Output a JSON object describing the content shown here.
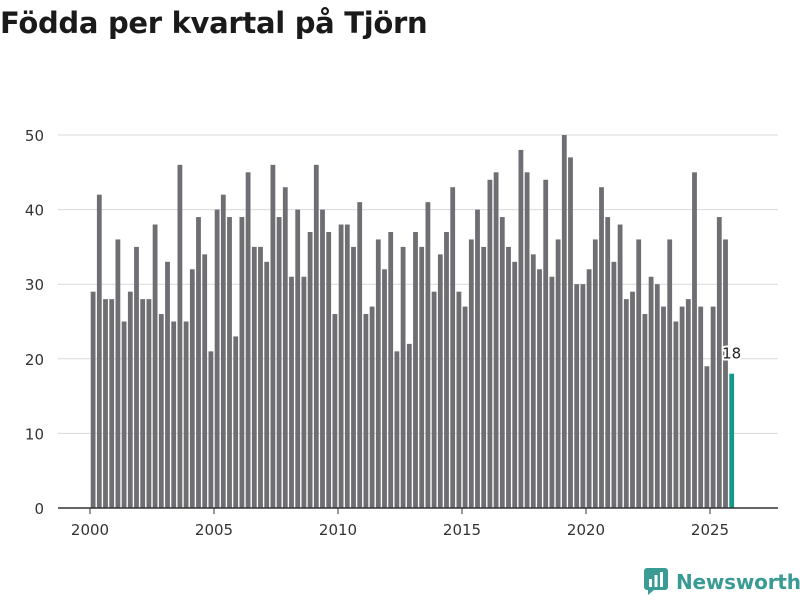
{
  "chart_data": {
    "type": "bar",
    "title": "Födda per kvartal på Tjörn",
    "xlabel": "",
    "ylabel": "",
    "ylim": [
      0,
      50
    ],
    "yticks": [
      0,
      10,
      20,
      30,
      40,
      50
    ],
    "xticks": [
      2000,
      2005,
      2010,
      2015,
      2020,
      2025
    ],
    "start_year": 2000,
    "start_quarter": 1,
    "values": [
      29,
      42,
      28,
      28,
      36,
      25,
      29,
      35,
      28,
      28,
      38,
      26,
      33,
      25,
      46,
      25,
      32,
      39,
      34,
      21,
      40,
      42,
      39,
      23,
      39,
      45,
      35,
      35,
      33,
      46,
      39,
      43,
      31,
      40,
      31,
      37,
      46,
      40,
      37,
      26,
      38,
      38,
      35,
      41,
      26,
      27,
      36,
      32,
      37,
      21,
      35,
      22,
      37,
      35,
      41,
      29,
      34,
      37,
      43,
      29,
      27,
      36,
      40,
      35,
      44,
      45,
      39,
      35,
      33,
      48,
      45,
      34,
      32,
      44,
      31,
      36,
      50,
      47,
      30,
      30,
      32,
      36,
      43,
      39,
      33,
      38,
      28,
      29,
      36,
      26,
      31,
      30,
      27,
      36,
      25,
      27,
      28,
      45,
      27,
      19,
      27,
      39,
      36,
      18
    ],
    "bar_color": "#6e6e73",
    "highlight_color": "#13988a",
    "highlight_index": 103,
    "highlight_label": "18"
  },
  "brand": {
    "name": "Newsworthy",
    "color": "#3a9a94"
  }
}
